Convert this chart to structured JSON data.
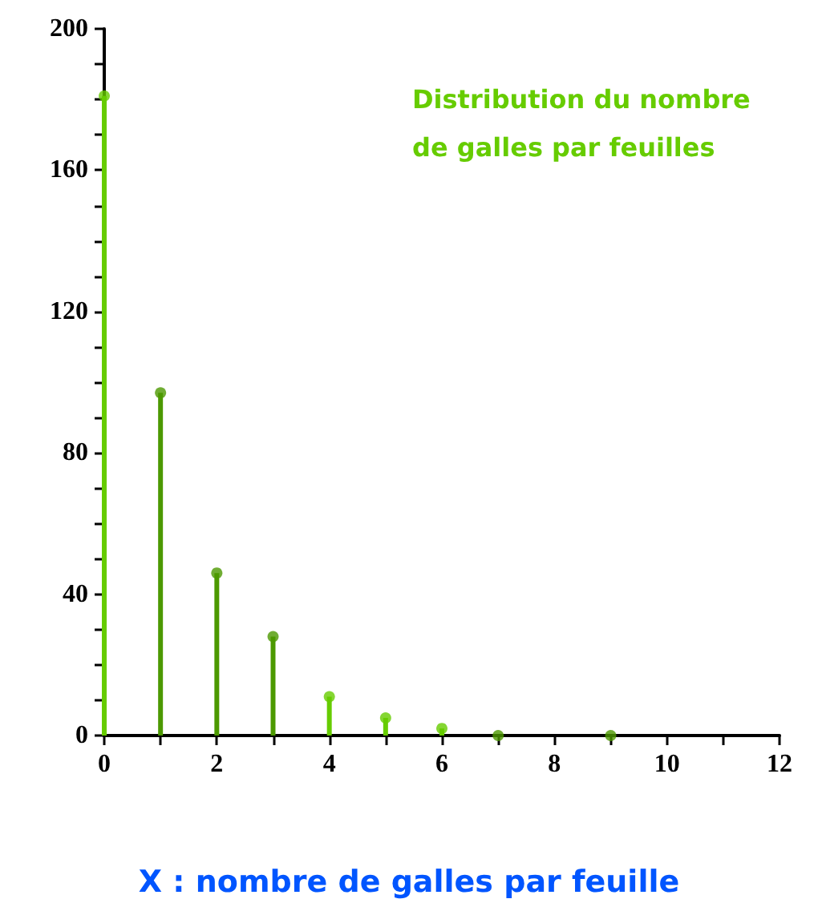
{
  "chart_data": {
    "type": "lollipop",
    "title": "Distribution du nombre de galles par feuilles",
    "xlabel": "X : nombre de galles par feuille",
    "x": [
      0,
      1,
      2,
      3,
      4,
      5,
      6,
      7,
      9
    ],
    "values": [
      181,
      97,
      46,
      28,
      11,
      5,
      2,
      0,
      0
    ],
    "colors": [
      "#66cc00",
      "#4c9900",
      "#4c9900",
      "#4c9900",
      "#66cc00",
      "#66cc00",
      "#66cc00",
      "#4c9900",
      "#4c9900"
    ],
    "xlim": [
      0,
      12
    ],
    "xticks": [
      0,
      {
        "value": 1,
        "label": null
      },
      2,
      {
        "value": 3,
        "label": null
      },
      4,
      {
        "value": 5,
        "label": null
      },
      6,
      {
        "value": 7,
        "label": null
      },
      8,
      {
        "value": 9,
        "label": null
      },
      10,
      {
        "value": 11,
        "label": null
      },
      12
    ],
    "ylim": [
      0,
      200
    ],
    "yticks": [
      0,
      {
        "value": 10,
        "label": null
      },
      {
        "value": 20,
        "label": null
      },
      {
        "value": 30,
        "label": null
      },
      40,
      {
        "value": 50,
        "label": null
      },
      {
        "value": 60,
        "label": null
      },
      {
        "value": 70,
        "label": null
      },
      80,
      {
        "value": 90,
        "label": null
      },
      {
        "value": 100,
        "label": null
      },
      {
        "value": 110,
        "label": null
      },
      120,
      {
        "value": 130,
        "label": null
      },
      {
        "value": 140,
        "label": null
      },
      {
        "value": 150,
        "label": null
      },
      160,
      {
        "value": 170,
        "label": null
      },
      {
        "value": 180,
        "label": null
      },
      {
        "value": 190,
        "label": null
      },
      200
    ],
    "grid": false,
    "marker": "circle"
  }
}
